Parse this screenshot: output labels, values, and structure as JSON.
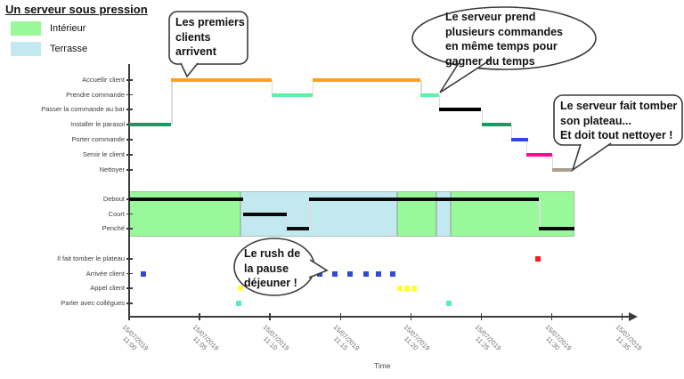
{
  "title": "Un serveur sous pression",
  "legend": {
    "items": [
      {
        "label": "Intérieur",
        "color": "#99F899"
      },
      {
        "label": "Terrasse",
        "color": "#C3E9F0"
      }
    ]
  },
  "annotations": {
    "bubble1": "Les premiers\nclients\narrivent",
    "bubble2": "Le serveur prend\nplusieurs commandes\nen même temps pour\ngagner du temps",
    "bubble3": "Le serveur fait tomber\nson plateau...\nEt doit tout nettoyer !",
    "bubble4": "Le rush de\nla pause\ndéjeuner !"
  },
  "chart_data": {
    "type": "timeline",
    "title": "Un serveur sous pression",
    "xlabel": "Time",
    "x_range_minutes": [
      0,
      35
    ],
    "x_tick_interval_minutes": 5,
    "x_tick_labels": [
      "15/07/2019\n11:00",
      "15/07/2019\n11:05",
      "15/07/2019\n11:10",
      "15/07/2019\n11:15",
      "15/07/2019\n11:20",
      "15/07/2019\n11:25",
      "15/07/2019\n11:30",
      "15/07/2019\n11:35"
    ],
    "rows": [
      "Accuellir client",
      "Prendre commande",
      "Passer la commande au bar",
      "Installer le parasol",
      "Porter commande",
      "Servir le client",
      "Nettoyer",
      "Debout",
      "Court",
      "Penché",
      "Il fait tomber le plateau",
      "Arrivée client",
      "Appel client",
      "Parler avec collègues"
    ],
    "activity_chain": [
      {
        "row": "Installer le parasol",
        "start": 0,
        "end": 3,
        "color": "#169D5F"
      },
      {
        "row": "Accuellir client",
        "start": 3,
        "end": 10.1,
        "color": "#FFA01E"
      },
      {
        "row": "Prendre commande",
        "start": 10.1,
        "end": 13,
        "color": "#5CF2A4"
      },
      {
        "row": "Accuellir client",
        "start": 13,
        "end": 20.7,
        "color": "#FFA01E"
      },
      {
        "row": "Prendre commande",
        "start": 20.7,
        "end": 22,
        "color": "#5CF2A4"
      },
      {
        "row": "Passer la commande au bar",
        "start": 22,
        "end": 25,
        "color": "#000000"
      },
      {
        "row": "Installer le parasol",
        "start": 25,
        "end": 27.1,
        "color": "#169D5F"
      },
      {
        "row": "Porter commande",
        "start": 27.1,
        "end": 28.3,
        "color": "#3346E0"
      },
      {
        "row": "Servir le client",
        "start": 28.2,
        "end": 30,
        "color": "#FF0A93"
      },
      {
        "row": "Nettoyer",
        "start": 30,
        "end": 31.5,
        "color": "#A99E92"
      }
    ],
    "posture_chain": [
      {
        "row": "Debout",
        "start": 0,
        "end": 8.1,
        "color": "#0a0a0a"
      },
      {
        "row": "Court",
        "start": 8.1,
        "end": 11.2,
        "color": "#0a0a0a"
      },
      {
        "row": "Penché",
        "start": 11.2,
        "end": 12.8,
        "color": "#0a0a0a"
      },
      {
        "row": "Debout",
        "start": 12.8,
        "end": 29.1,
        "color": "#0a0a0a"
      },
      {
        "row": "Penché",
        "start": 29.1,
        "end": 31.6,
        "color": "#0a0a0a"
      }
    ],
    "location_bands": [
      {
        "label": "Intérieur",
        "start": 0,
        "end": 7.9,
        "color": "#99F899"
      },
      {
        "label": "Terrasse",
        "start": 7.9,
        "end": 19,
        "color": "#C3E9F0"
      },
      {
        "label": "Intérieur",
        "start": 19,
        "end": 21.8,
        "color": "#99F899"
      },
      {
        "label": "Terrasse",
        "start": 21.8,
        "end": 22.8,
        "color": "#C3E9F0"
      },
      {
        "label": "Intérieur",
        "start": 22.8,
        "end": 31.6,
        "color": "#99F899"
      }
    ],
    "event_markers": [
      {
        "row": "Il fait tomber le plateau",
        "color": "#F52020",
        "times": [
          29
        ]
      },
      {
        "row": "Arrivée client",
        "color": "#2F4BD6",
        "times": [
          1,
          13.5,
          14.6,
          15.7,
          16.8,
          17.7,
          18.7
        ]
      },
      {
        "row": "Appel client",
        "color": "#FFFF3D",
        "times": [
          7.9,
          19.2,
          19.7,
          20.2
        ]
      },
      {
        "row": "Parler avec collègues",
        "color": "#55EEC0",
        "times": [
          7.8,
          22.7
        ]
      }
    ]
  }
}
